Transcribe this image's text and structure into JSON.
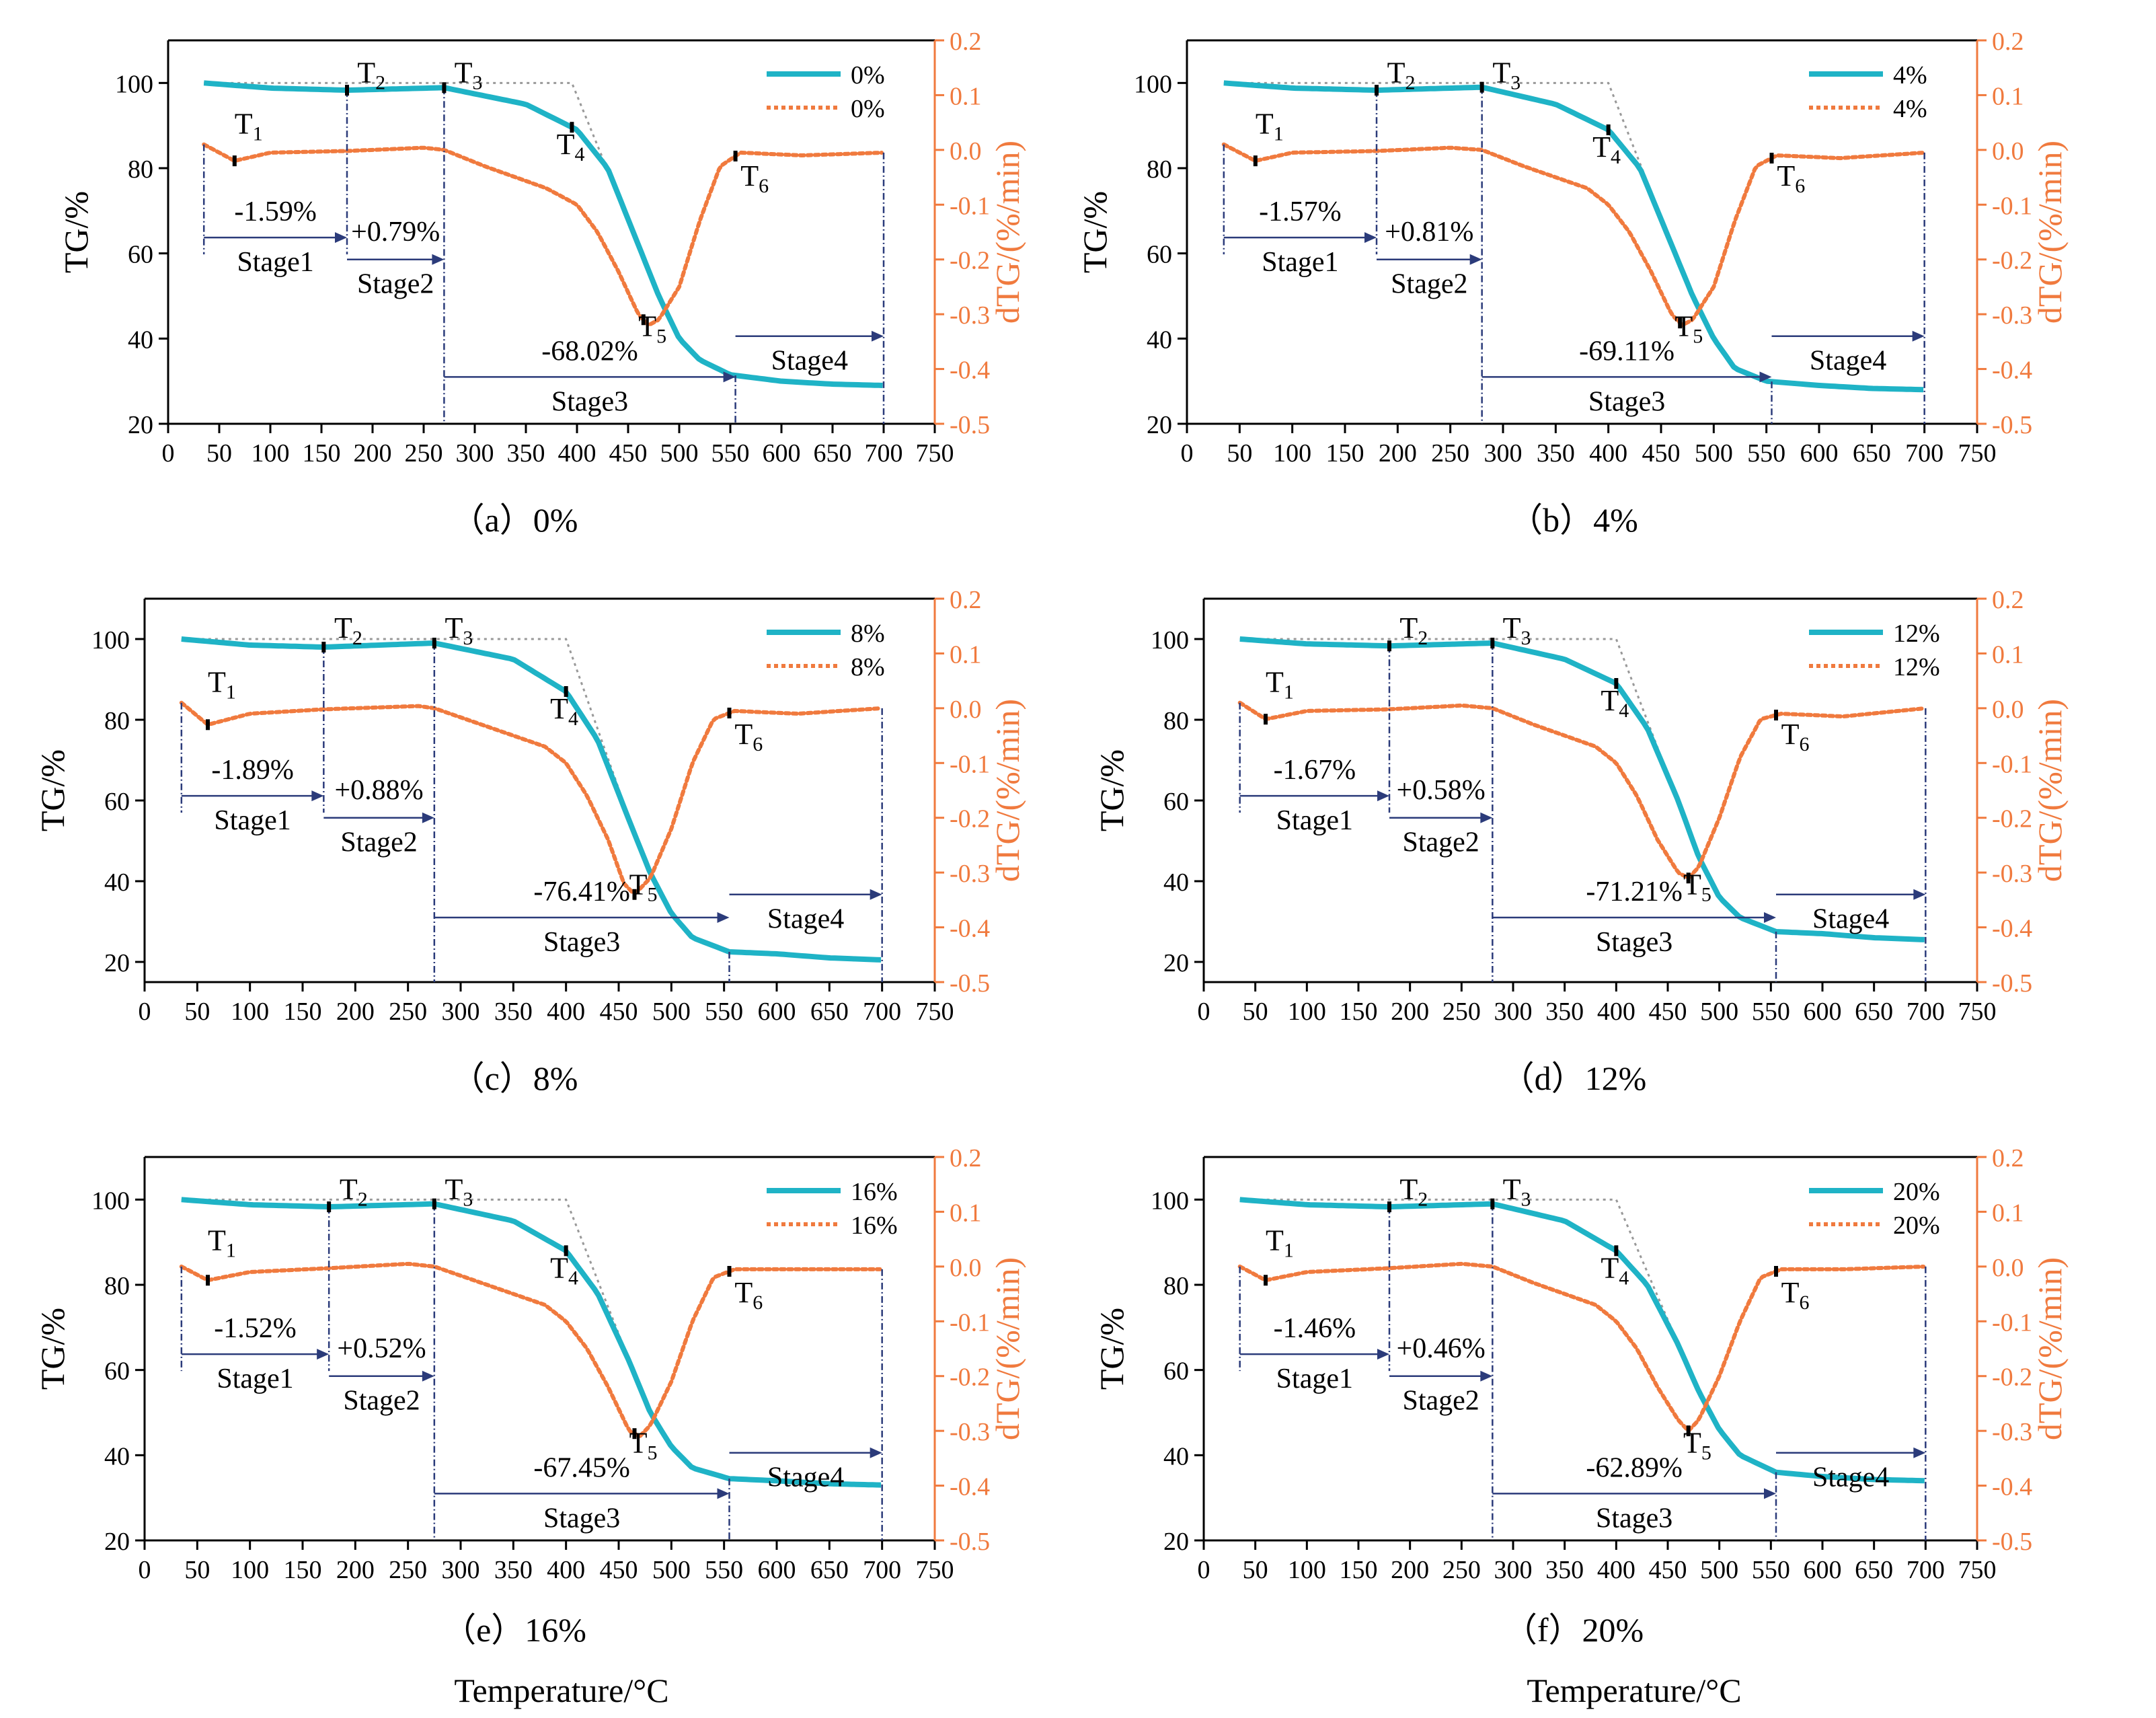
{
  "figure": {
    "xlabel_main": "Temperature/°C"
  },
  "chart_data": [
    {
      "type": "line",
      "panel": "(a)",
      "caption": "（a）0%",
      "xlabel": "",
      "ylabel": "TG/%",
      "y2label": "dTG/(%/min)",
      "xlim": [
        0,
        750
      ],
      "ylim": [
        20,
        110
      ],
      "y2lim": [
        -0.5,
        0.2
      ],
      "xticks": [
        0,
        50,
        100,
        150,
        200,
        250,
        300,
        350,
        400,
        450,
        500,
        550,
        600,
        650,
        700,
        750
      ],
      "yticks": [
        20,
        40,
        60,
        80,
        100
      ],
      "y2ticks": [
        0.2,
        0.1,
        0.0,
        -0.1,
        -0.2,
        -0.3,
        -0.4,
        -0.5
      ],
      "legend": [
        "0%",
        "0%"
      ],
      "legend_position": "top-right",
      "series": [
        {
          "name": "0%",
          "axis": "TG",
          "x": [
            35,
            100,
            175,
            270,
            350,
            400,
            430,
            460,
            480,
            500,
            520,
            550,
            600,
            650,
            700
          ],
          "y": [
            100,
            98.8,
            98.3,
            98.9,
            95,
            89,
            80,
            62,
            50,
            40,
            35,
            31.5,
            30,
            29.3,
            29
          ]
        },
        {
          "name": "0%",
          "axis": "dTG",
          "x": [
            35,
            65,
            100,
            175,
            250,
            270,
            310,
            370,
            400,
            420,
            440,
            460,
            470,
            480,
            500,
            520,
            540,
            560,
            620,
            700
          ],
          "y": [
            0.01,
            -0.02,
            -0.005,
            -0.002,
            0.004,
            0.0,
            -0.03,
            -0.07,
            -0.1,
            -0.15,
            -0.22,
            -0.3,
            -0.32,
            -0.31,
            -0.25,
            -0.13,
            -0.03,
            -0.005,
            -0.01,
            -0.005
          ]
        }
      ],
      "markers": [
        {
          "label": "T1",
          "sub": "1",
          "x": 65
        },
        {
          "label": "T2",
          "sub": "2",
          "x": 175
        },
        {
          "label": "T3",
          "sub": "3",
          "x": 270
        },
        {
          "label": "T4",
          "sub": "4",
          "x": 395
        },
        {
          "label": "T5",
          "sub": "5",
          "x": 465
        },
        {
          "label": "T6",
          "sub": "6",
          "x": 555
        }
      ],
      "stages": [
        {
          "name": "Stage1",
          "value": "-1.59%"
        },
        {
          "name": "Stage2",
          "value": "+0.79%"
        },
        {
          "name": "Stage3",
          "value": "-68.02%"
        },
        {
          "name": "Stage4",
          "value": ""
        }
      ]
    },
    {
      "type": "line",
      "panel": "(b)",
      "caption": "（b）4%",
      "xlabel": "",
      "ylabel": "TG/%",
      "y2label": "dTG/(%/min)",
      "xlim": [
        0,
        750
      ],
      "ylim": [
        20,
        110
      ],
      "y2lim": [
        -0.5,
        0.2
      ],
      "xticks": [
        0,
        50,
        100,
        150,
        200,
        250,
        300,
        350,
        400,
        450,
        500,
        550,
        600,
        650,
        700,
        750
      ],
      "yticks": [
        20,
        40,
        60,
        80,
        100
      ],
      "y2ticks": [
        0.2,
        0.1,
        0.0,
        -0.1,
        -0.2,
        -0.3,
        -0.4,
        -0.5
      ],
      "legend": [
        "4%",
        "4%"
      ],
      "legend_position": "top-right",
      "series": [
        {
          "name": "4%",
          "axis": "TG",
          "x": [
            35,
            100,
            180,
            280,
            350,
            400,
            430,
            460,
            480,
            500,
            520,
            550,
            600,
            650,
            700
          ],
          "y": [
            100,
            98.8,
            98.3,
            99,
            95,
            89,
            80,
            62,
            50,
            40,
            33,
            30,
            29,
            28.3,
            28
          ]
        },
        {
          "name": "4%",
          "axis": "dTG",
          "x": [
            35,
            65,
            100,
            180,
            250,
            280,
            320,
            380,
            400,
            420,
            440,
            460,
            470,
            480,
            500,
            520,
            540,
            560,
            620,
            700
          ],
          "y": [
            0.01,
            -0.02,
            -0.005,
            -0.002,
            0.004,
            0.0,
            -0.03,
            -0.07,
            -0.1,
            -0.15,
            -0.22,
            -0.3,
            -0.32,
            -0.31,
            -0.25,
            -0.13,
            -0.03,
            -0.01,
            -0.015,
            -0.005
          ]
        }
      ],
      "markers": [
        {
          "label": "T1",
          "sub": "1",
          "x": 65
        },
        {
          "label": "T2",
          "sub": "2",
          "x": 180
        },
        {
          "label": "T3",
          "sub": "3",
          "x": 280
        },
        {
          "label": "T4",
          "sub": "4",
          "x": 400
        },
        {
          "label": "T5",
          "sub": "5",
          "x": 468
        },
        {
          "label": "T6",
          "sub": "6",
          "x": 555
        }
      ],
      "stages": [
        {
          "name": "Stage1",
          "value": "-1.57%"
        },
        {
          "name": "Stage2",
          "value": "+0.81%"
        },
        {
          "name": "Stage3",
          "value": "-69.11%"
        },
        {
          "name": "Stage4",
          "value": ""
        }
      ]
    },
    {
      "type": "line",
      "panel": "(c)",
      "caption": "（c）8%",
      "xlabel": "",
      "ylabel": "TG/%",
      "y2label": "dTG/(%/min)",
      "xlim": [
        0,
        750
      ],
      "ylim": [
        15,
        110
      ],
      "y2lim": [
        -0.5,
        0.2
      ],
      "xticks": [
        0,
        50,
        100,
        150,
        200,
        250,
        300,
        350,
        400,
        450,
        500,
        550,
        600,
        650,
        700,
        750
      ],
      "yticks": [
        20,
        40,
        60,
        80,
        100
      ],
      "y2ticks": [
        0.2,
        0.1,
        0.0,
        -0.1,
        -0.2,
        -0.3,
        -0.4,
        -0.5
      ],
      "legend": [
        "8%",
        "8%"
      ],
      "legend_position": "top-right",
      "series": [
        {
          "name": "8%",
          "axis": "TG",
          "x": [
            35,
            100,
            170,
            275,
            350,
            400,
            430,
            460,
            480,
            500,
            520,
            555,
            600,
            650,
            700
          ],
          "y": [
            100,
            98.5,
            98,
            99,
            95,
            87,
            75,
            55,
            42,
            32,
            26,
            22.5,
            22,
            21,
            20.5
          ]
        },
        {
          "name": "8%",
          "axis": "dTG",
          "x": [
            35,
            60,
            100,
            170,
            260,
            275,
            320,
            380,
            400,
            420,
            440,
            455,
            465,
            480,
            500,
            520,
            540,
            560,
            620,
            700
          ],
          "y": [
            0.01,
            -0.03,
            -0.01,
            -0.002,
            0.004,
            0.0,
            -0.03,
            -0.07,
            -0.1,
            -0.16,
            -0.24,
            -0.32,
            -0.34,
            -0.31,
            -0.22,
            -0.1,
            -0.02,
            -0.005,
            -0.01,
            0.0
          ]
        }
      ],
      "markers": [
        {
          "label": "T1",
          "sub": "1",
          "x": 60
        },
        {
          "label": "T2",
          "sub": "2",
          "x": 170
        },
        {
          "label": "T3",
          "sub": "3",
          "x": 275
        },
        {
          "label": "T4",
          "sub": "4",
          "x": 400
        },
        {
          "label": "T5",
          "sub": "5",
          "x": 465
        },
        {
          "label": "T6",
          "sub": "6",
          "x": 555
        }
      ],
      "stages": [
        {
          "name": "Stage1",
          "value": "-1.89%"
        },
        {
          "name": "Stage2",
          "value": "+0.88%"
        },
        {
          "name": "Stage3",
          "value": "-76.41%"
        },
        {
          "name": "Stage4",
          "value": ""
        }
      ]
    },
    {
      "type": "line",
      "panel": "(d)",
      "caption": "（d）12%",
      "xlabel": "",
      "ylabel": "TG/%",
      "y2label": "dTG/(%/min)",
      "xlim": [
        0,
        750
      ],
      "ylim": [
        15,
        110
      ],
      "y2lim": [
        -0.5,
        0.2
      ],
      "xticks": [
        0,
        50,
        100,
        150,
        200,
        250,
        300,
        350,
        400,
        450,
        500,
        550,
        600,
        650,
        700,
        750
      ],
      "yticks": [
        20,
        40,
        60,
        80,
        100
      ],
      "y2ticks": [
        0.2,
        0.1,
        0.0,
        -0.1,
        -0.2,
        -0.3,
        -0.4,
        -0.5
      ],
      "legend": [
        "12%",
        "12%"
      ],
      "legend_position": "top-right",
      "series": [
        {
          "name": "12%",
          "axis": "TG",
          "x": [
            35,
            100,
            180,
            280,
            350,
            400,
            430,
            460,
            480,
            500,
            520,
            555,
            600,
            650,
            700
          ],
          "y": [
            100,
            98.8,
            98.3,
            99,
            95,
            89,
            78,
            60,
            46,
            36,
            31,
            27.5,
            27,
            26,
            25.5
          ]
        },
        {
          "name": "12%",
          "axis": "dTG",
          "x": [
            35,
            60,
            100,
            180,
            250,
            280,
            320,
            380,
            400,
            420,
            440,
            460,
            470,
            480,
            500,
            520,
            540,
            560,
            620,
            700
          ],
          "y": [
            0.01,
            -0.02,
            -0.005,
            -0.002,
            0.005,
            0.0,
            -0.03,
            -0.07,
            -0.1,
            -0.16,
            -0.24,
            -0.3,
            -0.31,
            -0.29,
            -0.2,
            -0.09,
            -0.02,
            -0.01,
            -0.015,
            0.0
          ]
        }
      ],
      "markers": [
        {
          "label": "T1",
          "sub": "1",
          "x": 60
        },
        {
          "label": "T2",
          "sub": "2",
          "x": 180
        },
        {
          "label": "T3",
          "sub": "3",
          "x": 280
        },
        {
          "label": "T4",
          "sub": "4",
          "x": 400
        },
        {
          "label": "T5",
          "sub": "5",
          "x": 470
        },
        {
          "label": "T6",
          "sub": "6",
          "x": 555
        }
      ],
      "stages": [
        {
          "name": "Stage1",
          "value": "-1.67%"
        },
        {
          "name": "Stage2",
          "value": "+0.58%"
        },
        {
          "name": "Stage3",
          "value": "-71.21%"
        },
        {
          "name": "Stage4",
          "value": ""
        }
      ]
    },
    {
      "type": "line",
      "panel": "(e)",
      "caption": "（e）16%",
      "xlabel": "Temperature/°C",
      "ylabel": "TG/%",
      "y2label": "dTG/(%/min)",
      "xlim": [
        0,
        750
      ],
      "ylim": [
        20,
        110
      ],
      "y2lim": [
        -0.5,
        0.2
      ],
      "xticks": [
        0,
        50,
        100,
        150,
        200,
        250,
        300,
        350,
        400,
        450,
        500,
        550,
        600,
        650,
        700,
        750
      ],
      "yticks": [
        20,
        40,
        60,
        80,
        100
      ],
      "y2ticks": [
        0.2,
        0.1,
        0.0,
        -0.1,
        -0.2,
        -0.3,
        -0.4,
        -0.5
      ],
      "legend": [
        "16%",
        "16%"
      ],
      "legend_position": "top-right",
      "series": [
        {
          "name": "16%",
          "axis": "TG",
          "x": [
            35,
            100,
            175,
            275,
            350,
            400,
            430,
            460,
            480,
            500,
            520,
            555,
            600,
            650,
            700
          ],
          "y": [
            100,
            98.8,
            98.3,
            99,
            95,
            88,
            78,
            62,
            50,
            42,
            37,
            34.5,
            34,
            33.3,
            33
          ]
        },
        {
          "name": "16%",
          "axis": "dTG",
          "x": [
            35,
            60,
            100,
            175,
            250,
            275,
            320,
            380,
            400,
            420,
            440,
            460,
            470,
            480,
            500,
            520,
            540,
            560,
            620,
            700
          ],
          "y": [
            0.0,
            -0.025,
            -0.01,
            -0.003,
            0.005,
            0.0,
            -0.03,
            -0.07,
            -0.1,
            -0.15,
            -0.22,
            -0.3,
            -0.31,
            -0.29,
            -0.21,
            -0.1,
            -0.02,
            -0.005,
            -0.005,
            -0.005
          ]
        }
      ],
      "markers": [
        {
          "label": "T1",
          "sub": "1",
          "x": 60
        },
        {
          "label": "T2",
          "sub": "2",
          "x": 175
        },
        {
          "label": "T3",
          "sub": "3",
          "x": 275
        },
        {
          "label": "T4",
          "sub": "4",
          "x": 400
        },
        {
          "label": "T5",
          "sub": "5",
          "x": 465
        },
        {
          "label": "T6",
          "sub": "6",
          "x": 555
        }
      ],
      "stages": [
        {
          "name": "Stage1",
          "value": "-1.52%"
        },
        {
          "name": "Stage2",
          "value": "+0.52%"
        },
        {
          "name": "Stage3",
          "value": "-67.45%"
        },
        {
          "name": "Stage4",
          "value": ""
        }
      ]
    },
    {
      "type": "line",
      "panel": "(f)",
      "caption": "（f）20%",
      "xlabel": "Temperature/°C",
      "ylabel": "TG/%",
      "y2label": "dTG/(%/min)",
      "xlim": [
        0,
        750
      ],
      "ylim": [
        20,
        110
      ],
      "y2lim": [
        -0.5,
        0.2
      ],
      "xticks": [
        0,
        50,
        100,
        150,
        200,
        250,
        300,
        350,
        400,
        450,
        500,
        550,
        600,
        650,
        700,
        750
      ],
      "yticks": [
        20,
        40,
        60,
        80,
        100
      ],
      "y2ticks": [
        0.2,
        0.1,
        0.0,
        -0.1,
        -0.2,
        -0.3,
        -0.4,
        -0.5
      ],
      "legend": [
        "20%",
        "20%"
      ],
      "legend_position": "top-right",
      "series": [
        {
          "name": "20%",
          "axis": "TG",
          "x": [
            35,
            100,
            180,
            280,
            350,
            400,
            430,
            460,
            480,
            500,
            520,
            555,
            600,
            650,
            700
          ],
          "y": [
            100,
            98.8,
            98.3,
            99,
            95,
            88,
            80,
            66,
            55,
            46,
            40,
            36,
            35,
            34.3,
            34
          ]
        },
        {
          "name": "20%",
          "axis": "dTG",
          "x": [
            35,
            60,
            100,
            180,
            250,
            280,
            320,
            380,
            400,
            420,
            440,
            460,
            470,
            480,
            500,
            520,
            540,
            560,
            620,
            700
          ],
          "y": [
            0.0,
            -0.025,
            -0.01,
            -0.003,
            0.005,
            0.0,
            -0.03,
            -0.07,
            -0.1,
            -0.15,
            -0.22,
            -0.28,
            -0.3,
            -0.28,
            -0.2,
            -0.1,
            -0.02,
            -0.005,
            -0.005,
            0.0
          ]
        }
      ],
      "markers": [
        {
          "label": "T1",
          "sub": "1",
          "x": 60
        },
        {
          "label": "T2",
          "sub": "2",
          "x": 180
        },
        {
          "label": "T3",
          "sub": "3",
          "x": 280
        },
        {
          "label": "T4",
          "sub": "4",
          "x": 400
        },
        {
          "label": "T5",
          "sub": "5",
          "x": 470
        },
        {
          "label": "T6",
          "sub": "6",
          "x": 555
        }
      ],
      "stages": [
        {
          "name": "Stage1",
          "value": "-1.46%"
        },
        {
          "name": "Stage2",
          "value": "+0.46%"
        },
        {
          "name": "Stage3",
          "value": "-62.89%"
        },
        {
          "name": "Stage4",
          "value": ""
        }
      ]
    }
  ],
  "colors": {
    "tg": "#1fb3c6",
    "dtg": "#f07a3e",
    "axis": "#000000",
    "right_axis": "#f07a3e",
    "arrow": "#2b3b7a",
    "guide": "#999999"
  }
}
